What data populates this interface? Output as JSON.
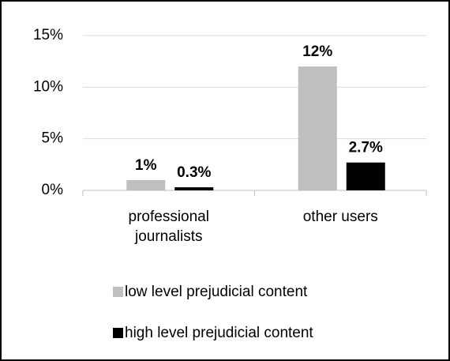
{
  "chart_data": {
    "type": "bar",
    "categories": [
      "professional journalists",
      "other users"
    ],
    "series": [
      {
        "name": "low level prejudicial content",
        "color": "#bfbfbf",
        "values": [
          1,
          12
        ],
        "value_labels": [
          "1%",
          "12%"
        ]
      },
      {
        "name": "high level prejudicial content",
        "color": "#000000",
        "values": [
          0.3,
          2.7
        ],
        "value_labels": [
          "0.3%",
          "2.7%"
        ]
      }
    ],
    "ylim": [
      0,
      15
    ],
    "yticks": [
      {
        "value": 0,
        "label": "0%"
      },
      {
        "value": 5,
        "label": "5%"
      },
      {
        "value": 10,
        "label": "10%"
      },
      {
        "value": 15,
        "label": "15%"
      }
    ],
    "grid": true,
    "legend": "bottom"
  }
}
